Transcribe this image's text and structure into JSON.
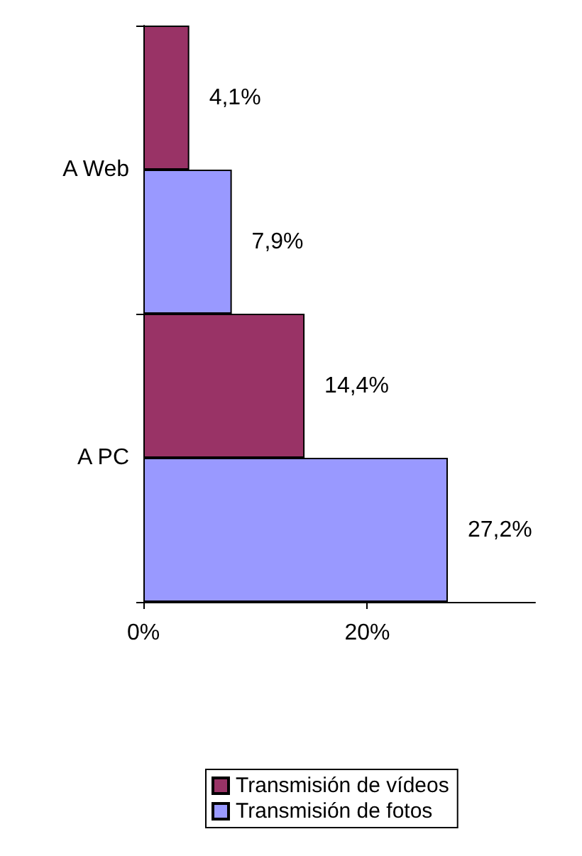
{
  "chart_data": {
    "type": "bar",
    "orientation": "horizontal",
    "categories": [
      "A Web",
      "A PC"
    ],
    "series": [
      {
        "name": "Transmisión de vídeos",
        "color": "#993366",
        "values": [
          4.1,
          14.4
        ],
        "value_labels": [
          "4,1%",
          "14,4%"
        ]
      },
      {
        "name": "Transmisión de fotos",
        "color": "#9999ff",
        "values": [
          7.9,
          27.2
        ],
        "value_labels": [
          "7,9%",
          "27,2%"
        ]
      }
    ],
    "xlim": [
      0,
      35
    ],
    "xticks": [
      {
        "value": 0,
        "label": "0%"
      },
      {
        "value": 20,
        "label": "20%"
      }
    ],
    "grid": false,
    "legend": "bottom"
  }
}
